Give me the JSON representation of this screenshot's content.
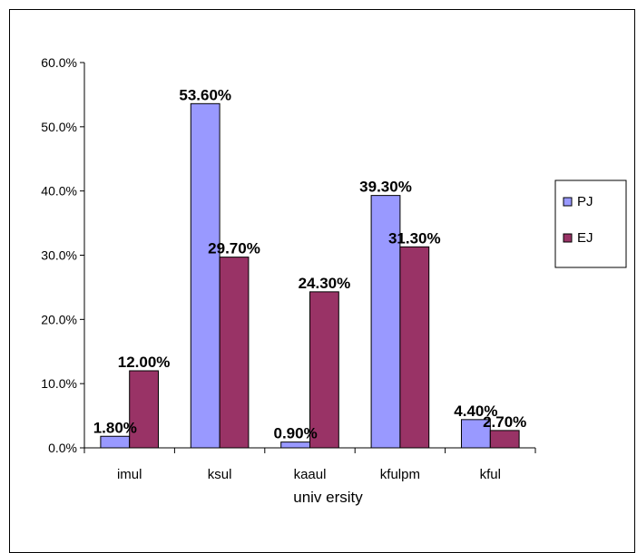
{
  "chart_data": {
    "type": "bar",
    "title": "",
    "xlabel": "univ ersity",
    "ylabel": "",
    "categories": [
      "imul",
      "ksul",
      "kaaul",
      "kfulpm",
      "kful"
    ],
    "ylim": [
      0,
      60
    ],
    "yticks": [
      "0.0%",
      "10.0%",
      "20.0%",
      "30.0%",
      "40.0%",
      "50.0%",
      "60.0%"
    ],
    "grid": false,
    "legend_position": "right",
    "series": [
      {
        "name": "PJ",
        "color": "#9999ff",
        "values": [
          1.8,
          53.6,
          0.9,
          39.3,
          4.4
        ],
        "labels": [
          "1.80%",
          "53.60%",
          "0.90%",
          "39.30%",
          "4.40%"
        ]
      },
      {
        "name": "EJ",
        "color": "#993366",
        "values": [
          12.0,
          29.7,
          24.3,
          31.3,
          2.7
        ],
        "labels": [
          "12.00%",
          "29.70%",
          "24.30%",
          "31.30%",
          "2.70%"
        ]
      }
    ]
  }
}
